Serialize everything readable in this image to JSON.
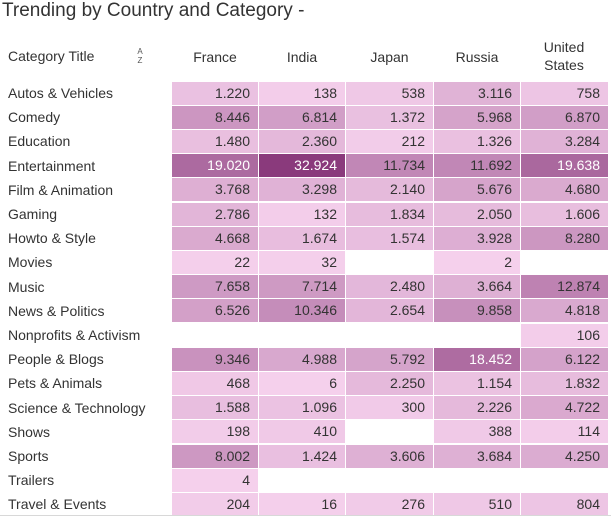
{
  "title": "Trending by Country and Category -",
  "header": {
    "category_title": "Category Title",
    "sort_icon": "sort-alpha-asc-icon",
    "sort_glyph_top": "A",
    "sort_glyph_bottom": "Z"
  },
  "colors": {
    "min": "#f5d0ec",
    "max": "#8a3a7c",
    "text_dark": "#333333",
    "text_light": "#ffffff"
  },
  "chart_data": {
    "type": "table",
    "title": "Trending by Country and Category -",
    "columns": [
      "France",
      "India",
      "Japan",
      "Russia",
      "United States"
    ],
    "rows": [
      {
        "category": "Autos & Vehicles",
        "values": [
          "1.220",
          "138",
          "538",
          "3.116",
          "758"
        ]
      },
      {
        "category": "Comedy",
        "values": [
          "8.446",
          "6.814",
          "1.372",
          "5.968",
          "6.870"
        ]
      },
      {
        "category": "Education",
        "values": [
          "1.480",
          "2.360",
          "212",
          "1.326",
          "3.284"
        ]
      },
      {
        "category": "Entertainment",
        "values": [
          "19.020",
          "32.924",
          "11.734",
          "11.692",
          "19.638"
        ]
      },
      {
        "category": "Film & Animation",
        "values": [
          "3.768",
          "3.298",
          "2.140",
          "5.676",
          "4.680"
        ]
      },
      {
        "category": "Gaming",
        "values": [
          "2.786",
          "132",
          "1.834",
          "2.050",
          "1.606"
        ]
      },
      {
        "category": "Howto & Style",
        "values": [
          "4.668",
          "1.674",
          "1.574",
          "3.928",
          "8.280"
        ]
      },
      {
        "category": "Movies",
        "values": [
          "22",
          "32",
          "",
          "2",
          ""
        ]
      },
      {
        "category": "Music",
        "values": [
          "7.658",
          "7.714",
          "2.480",
          "3.664",
          "12.874"
        ]
      },
      {
        "category": "News & Politics",
        "values": [
          "6.526",
          "10.346",
          "2.654",
          "9.858",
          "4.818"
        ]
      },
      {
        "category": "Nonprofits & Activism",
        "values": [
          "",
          "",
          "",
          "",
          "106"
        ]
      },
      {
        "category": "People & Blogs",
        "values": [
          "9.346",
          "4.988",
          "5.792",
          "18.452",
          "6.122"
        ]
      },
      {
        "category": "Pets & Animals",
        "values": [
          "468",
          "6",
          "2.250",
          "1.154",
          "1.832"
        ]
      },
      {
        "category": "Science & Technology",
        "values": [
          "1.588",
          "1.096",
          "300",
          "2.226",
          "4.722"
        ]
      },
      {
        "category": "Shows",
        "values": [
          "198",
          "410",
          "",
          "388",
          "114"
        ]
      },
      {
        "category": "Sports",
        "values": [
          "8.002",
          "1.424",
          "3.606",
          "3.684",
          "4.250"
        ]
      },
      {
        "category": "Trailers",
        "values": [
          "4",
          "",
          "",
          "",
          ""
        ]
      },
      {
        "category": "Travel & Events",
        "values": [
          "204",
          "16",
          "276",
          "510",
          "804"
        ]
      }
    ]
  }
}
